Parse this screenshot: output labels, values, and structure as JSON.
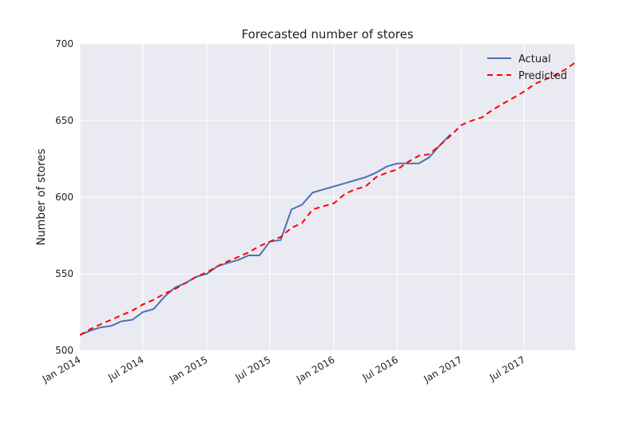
{
  "chart_data": {
    "type": "line",
    "title": "Forecasted number of stores",
    "xlabel": "",
    "ylabel": "Number of stores",
    "ylim": [
      500,
      700
    ],
    "xlim": [
      "2014-01-01",
      "2017-11-01"
    ],
    "yticks": [
      500,
      550,
      600,
      650,
      700
    ],
    "xticks": [
      {
        "date": "2014-01-01",
        "label": "Jan 2014"
      },
      {
        "date": "2014-07-01",
        "label": "Jul 2014"
      },
      {
        "date": "2015-01-01",
        "label": "Jan 2015"
      },
      {
        "date": "2015-07-01",
        "label": "Jul 2015"
      },
      {
        "date": "2016-01-01",
        "label": "Jan 2016"
      },
      {
        "date": "2016-07-01",
        "label": "Jul 2016"
      },
      {
        "date": "2017-01-01",
        "label": "Jan 2017"
      },
      {
        "date": "2017-07-01",
        "label": "Jul 2017"
      }
    ],
    "grid": true,
    "legend_position": "top-right",
    "series": [
      {
        "name": "Actual",
        "color": "#4c72b0",
        "style": "solid",
        "points": [
          [
            "2014-01-01",
            510
          ],
          [
            "2014-02-01",
            513
          ],
          [
            "2014-03-01",
            515
          ],
          [
            "2014-04-01",
            516
          ],
          [
            "2014-05-01",
            519
          ],
          [
            "2014-06-01",
            520
          ],
          [
            "2014-07-01",
            525
          ],
          [
            "2014-08-01",
            527
          ],
          [
            "2014-09-01",
            535
          ],
          [
            "2014-10-01",
            541
          ],
          [
            "2014-11-01",
            544
          ],
          [
            "2014-12-01",
            548
          ],
          [
            "2015-01-01",
            550
          ],
          [
            "2015-02-01",
            555
          ],
          [
            "2015-03-01",
            557
          ],
          [
            "2015-04-01",
            559
          ],
          [
            "2015-05-01",
            562
          ],
          [
            "2015-06-01",
            562
          ],
          [
            "2015-07-01",
            571
          ],
          [
            "2015-08-01",
            572
          ],
          [
            "2015-09-01",
            592
          ],
          [
            "2015-10-01",
            595
          ],
          [
            "2015-11-01",
            603
          ],
          [
            "2015-12-01",
            605
          ],
          [
            "2016-01-01",
            607
          ],
          [
            "2016-02-01",
            609
          ],
          [
            "2016-03-01",
            611
          ],
          [
            "2016-04-01",
            613
          ],
          [
            "2016-05-01",
            616
          ],
          [
            "2016-06-01",
            620
          ],
          [
            "2016-07-01",
            622
          ],
          [
            "2016-08-01",
            622
          ],
          [
            "2016-09-01",
            622
          ],
          [
            "2016-10-01",
            626
          ],
          [
            "2016-11-01",
            634
          ],
          [
            "2016-12-01",
            641
          ]
        ]
      },
      {
        "name": "Predicted",
        "color": "#ff0000",
        "style": "dashed",
        "points": [
          [
            "2014-01-01",
            510
          ],
          [
            "2014-02-01",
            514
          ],
          [
            "2014-03-01",
            517
          ],
          [
            "2014-04-01",
            520
          ],
          [
            "2014-05-01",
            523
          ],
          [
            "2014-06-01",
            526
          ],
          [
            "2014-07-01",
            530
          ],
          [
            "2014-08-01",
            533
          ],
          [
            "2014-09-01",
            537
          ],
          [
            "2014-10-01",
            540
          ],
          [
            "2014-11-01",
            544
          ],
          [
            "2014-12-01",
            548
          ],
          [
            "2015-01-01",
            551
          ],
          [
            "2015-02-01",
            555
          ],
          [
            "2015-03-01",
            558
          ],
          [
            "2015-04-01",
            561
          ],
          [
            "2015-05-01",
            564
          ],
          [
            "2015-06-01",
            568
          ],
          [
            "2015-07-01",
            571
          ],
          [
            "2015-08-01",
            574
          ],
          [
            "2015-09-01",
            580
          ],
          [
            "2015-10-01",
            583
          ],
          [
            "2015-11-01",
            592
          ],
          [
            "2015-12-01",
            594
          ],
          [
            "2016-01-01",
            596
          ],
          [
            "2016-02-01",
            602
          ],
          [
            "2016-03-01",
            605
          ],
          [
            "2016-04-01",
            607
          ],
          [
            "2016-05-01",
            613
          ],
          [
            "2016-06-01",
            616
          ],
          [
            "2016-07-01",
            618
          ],
          [
            "2016-08-01",
            623
          ],
          [
            "2016-09-01",
            627
          ],
          [
            "2016-10-01",
            628
          ],
          [
            "2016-11-01",
            634
          ],
          [
            "2016-12-01",
            640
          ],
          [
            "2017-01-01",
            647
          ],
          [
            "2017-02-01",
            650
          ],
          [
            "2017-03-01",
            652
          ],
          [
            "2017-04-01",
            657
          ],
          [
            "2017-05-01",
            661
          ],
          [
            "2017-06-01",
            665
          ],
          [
            "2017-07-01",
            669
          ],
          [
            "2017-08-01",
            674
          ],
          [
            "2017-09-01",
            677
          ],
          [
            "2017-10-01",
            680
          ],
          [
            "2017-11-01",
            684
          ],
          [
            "2017-12-01",
            689
          ],
          [
            "2018-01-01",
            693
          ]
        ]
      }
    ]
  }
}
